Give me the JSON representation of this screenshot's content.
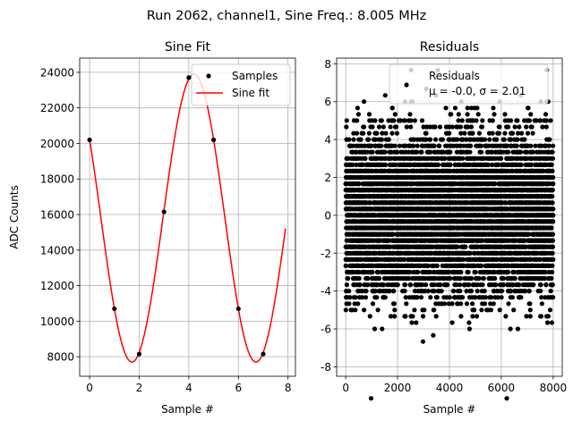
{
  "suptitle": "Run 2062, channel1, Sine Freq.: 8.005 MHz",
  "chart_data": [
    {
      "type": "line",
      "title": "Sine Fit",
      "xlabel": "Sample #",
      "ylabel": "ADC Counts",
      "xlim": [
        -0.4,
        8.3
      ],
      "ylim": [
        6900,
        24800
      ],
      "xticks": [
        0,
        2,
        4,
        6,
        8
      ],
      "yticks": [
        8000,
        10000,
        12000,
        14000,
        16000,
        18000,
        20000,
        22000,
        24000
      ],
      "grid": true,
      "legend": {
        "position": "top-right",
        "entries": [
          "Samples",
          "Sine fit"
        ]
      },
      "samples": {
        "name": "Samples",
        "x": [
          0,
          1,
          2,
          3,
          4,
          5,
          6,
          7
        ],
        "y": [
          20200,
          10700,
          8150,
          16150,
          23700,
          20200,
          10700,
          8150
        ],
        "color": "#000000"
      },
      "fit": {
        "name": "Sine fit",
        "offset": 15800,
        "amplitude": 8100,
        "period_samples": 5.0,
        "phase_rad": 2.567,
        "x_range": [
          0,
          7.9
        ],
        "color": "#ff0000"
      }
    },
    {
      "type": "scatter",
      "title": "Residuals",
      "xlabel": "Sample #",
      "ylabel": "",
      "xlim": [
        -350,
        8350
      ],
      "ylim": [
        -8.5,
        8.3
      ],
      "xticks": [
        0,
        2000,
        4000,
        6000,
        8000
      ],
      "yticks": [
        -8,
        -6,
        -4,
        -2,
        0,
        2,
        4,
        6,
        8
      ],
      "grid": true,
      "legend": {
        "position": "top-right",
        "entries": [
          "Residuals",
          "μ = -0.0, σ = 2.01"
        ]
      },
      "residuals": {
        "n": 8000,
        "mean": 0.0,
        "sigma": 2.01,
        "x_range": [
          0,
          8000
        ],
        "color": "#000000"
      }
    }
  ]
}
